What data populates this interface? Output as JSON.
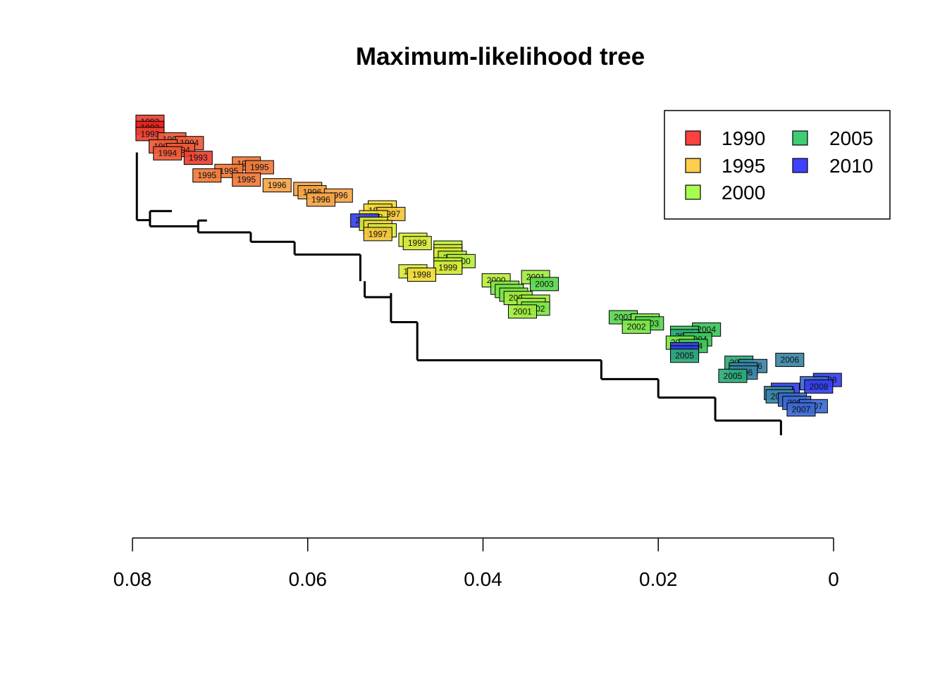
{
  "chart_data": {
    "type": "phylogenetic-tree",
    "title": "Maximum-likelihood tree",
    "xlabel": "",
    "ylabel": "",
    "x_axis": {
      "reversed": true,
      "xlim": [
        0.08,
        0
      ],
      "ticks": [
        0.08,
        0.06,
        0.04,
        0.02,
        0
      ],
      "tick_labels": [
        "0.08",
        "0.06",
        "0.04",
        "0.02",
        "0"
      ]
    },
    "legend": {
      "placement": "top-right",
      "ncol": 2,
      "entries": [
        {
          "label": "1990",
          "color": "#ff4040"
        },
        {
          "label": "1995",
          "color": "#ffcc4d"
        },
        {
          "label": "2000",
          "color": "#a6ff4d"
        },
        {
          "label": "2005",
          "color": "#40cc73"
        },
        {
          "label": "2010",
          "color": "#4040ff"
        }
      ]
    },
    "year_colors": {
      "1992": "#e61f1f",
      "1993": "#ea3f32",
      "1994": "#ee5a38",
      "1995": "#f07a3a",
      "1996": "#f5a447",
      "1997": "#f4c63d",
      "1998": "#f3dc3a",
      "1999": "#d8ea3a",
      "2000": "#b8ee3e",
      "2001": "#a1ec40",
      "2002": "#7ee64a",
      "2003": "#5ad64e",
      "2004": "#3cc45a",
      "2005": "#2eaa78",
      "2006": "#3a86a6",
      "2007": "#3c6ad1",
      "2008": "#3540ee"
    },
    "tips": [
      {
        "label": "1993",
        "year": "1993",
        "x": 0.078,
        "y": 0.005
      },
      {
        "label": "1992",
        "year": "1992",
        "x": 0.078,
        "y": 0.02
      },
      {
        "label": "1993",
        "year": "1993",
        "x": 0.078,
        "y": 0.035
      },
      {
        "label": "1994",
        "year": "1994",
        "x": 0.0755,
        "y": 0.048
      },
      {
        "label": "1994",
        "year": "1994",
        "x": 0.0735,
        "y": 0.057
      },
      {
        "label": "1994",
        "year": "1994",
        "x": 0.0765,
        "y": 0.065
      },
      {
        "label": "1994",
        "year": "1994",
        "x": 0.0745,
        "y": 0.074
      },
      {
        "label": "1994",
        "year": "1994",
        "x": 0.076,
        "y": 0.082
      },
      {
        "label": "1993",
        "year": "1993",
        "x": 0.0725,
        "y": 0.093
      },
      {
        "label": "1995",
        "year": "1995",
        "x": 0.067,
        "y": 0.107
      },
      {
        "label": "1995",
        "year": "1995",
        "x": 0.0655,
        "y": 0.116
      },
      {
        "label": "1995",
        "year": "1995",
        "x": 0.069,
        "y": 0.125
      },
      {
        "label": "1995",
        "year": "1995",
        "x": 0.0715,
        "y": 0.136
      },
      {
        "label": "1995",
        "year": "1995",
        "x": 0.067,
        "y": 0.146
      },
      {
        "label": "1996",
        "year": "1996",
        "x": 0.0635,
        "y": 0.16
      },
      {
        "label": "1996",
        "year": "1996",
        "x": 0.06,
        "y": 0.169
      },
      {
        "label": "1996",
        "year": "1996",
        "x": 0.0595,
        "y": 0.177
      },
      {
        "label": "1996",
        "year": "1996",
        "x": 0.0565,
        "y": 0.185
      },
      {
        "label": "1996",
        "year": "1996",
        "x": 0.0585,
        "y": 0.195
      },
      {
        "label": "1998",
        "year": "1998",
        "x": 0.0515,
        "y": 0.214
      },
      {
        "label": "1998",
        "year": "1998",
        "x": 0.052,
        "y": 0.222
      },
      {
        "label": "1997",
        "year": "1997",
        "x": 0.0505,
        "y": 0.23
      },
      {
        "label": "1998",
        "year": "1998",
        "x": 0.0525,
        "y": 0.238
      },
      {
        "label": "2008",
        "year": "2008",
        "x": 0.0535,
        "y": 0.246
      },
      {
        "label": "1999",
        "year": "1999",
        "x": 0.0525,
        "y": 0.254
      },
      {
        "label": "1998",
        "year": "1998",
        "x": 0.052,
        "y": 0.262
      },
      {
        "label": "1999",
        "year": "1999",
        "x": 0.0515,
        "y": 0.27
      },
      {
        "label": "1997",
        "year": "1997",
        "x": 0.052,
        "y": 0.279
      },
      {
        "label": "1999",
        "year": "1999",
        "x": 0.048,
        "y": 0.293
      },
      {
        "label": "1999",
        "year": "1999",
        "x": 0.0475,
        "y": 0.301
      },
      {
        "label": "2000",
        "year": "2000",
        "x": 0.044,
        "y": 0.312
      },
      {
        "label": "1999",
        "year": "1999",
        "x": 0.044,
        "y": 0.321
      },
      {
        "label": "1999",
        "year": "1999",
        "x": 0.044,
        "y": 0.329
      },
      {
        "label": "2000",
        "year": "2000",
        "x": 0.0435,
        "y": 0.337
      },
      {
        "label": "2000",
        "year": "2000",
        "x": 0.0425,
        "y": 0.345
      },
      {
        "label": "2000",
        "year": "2000",
        "x": 0.044,
        "y": 0.353
      },
      {
        "label": "1999",
        "year": "1999",
        "x": 0.044,
        "y": 0.361
      },
      {
        "label": "1999",
        "year": "1999",
        "x": 0.048,
        "y": 0.37
      },
      {
        "label": "1998",
        "year": "1998",
        "x": 0.047,
        "y": 0.378
      },
      {
        "label": "2000",
        "year": "2000",
        "x": 0.0385,
        "y": 0.392
      },
      {
        "label": "2001",
        "year": "2001",
        "x": 0.034,
        "y": 0.384
      },
      {
        "label": "2003",
        "year": "2003",
        "x": 0.033,
        "y": 0.401
      },
      {
        "label": "2002",
        "year": "2002",
        "x": 0.0375,
        "y": 0.41
      },
      {
        "label": "2002",
        "year": "2002",
        "x": 0.037,
        "y": 0.418
      },
      {
        "label": "2002",
        "year": "2002",
        "x": 0.0365,
        "y": 0.427
      },
      {
        "label": "2001",
        "year": "2001",
        "x": 0.036,
        "y": 0.435
      },
      {
        "label": "2001",
        "year": "2001",
        "x": 0.034,
        "y": 0.444
      },
      {
        "label": "2001",
        "year": "2001",
        "x": 0.0345,
        "y": 0.452
      },
      {
        "label": "2002",
        "year": "2002",
        "x": 0.034,
        "y": 0.461
      },
      {
        "label": "2001",
        "year": "2001",
        "x": 0.0355,
        "y": 0.468
      },
      {
        "label": "2003",
        "year": "2003",
        "x": 0.024,
        "y": 0.482
      },
      {
        "label": "2002",
        "year": "2002",
        "x": 0.0215,
        "y": 0.49
      },
      {
        "label": "2003",
        "year": "2003",
        "x": 0.021,
        "y": 0.497
      },
      {
        "label": "2002",
        "year": "2002",
        "x": 0.0225,
        "y": 0.505
      },
      {
        "label": "2004",
        "year": "2004",
        "x": 0.0145,
        "y": 0.512
      },
      {
        "label": "2004",
        "year": "2004",
        "x": 0.017,
        "y": 0.52
      },
      {
        "label": "2005",
        "year": "2005",
        "x": 0.017,
        "y": 0.528
      },
      {
        "label": "2004",
        "year": "2004",
        "x": 0.0155,
        "y": 0.536
      },
      {
        "label": "2002",
        "year": "2002",
        "x": 0.0175,
        "y": 0.544
      },
      {
        "label": "2004",
        "year": "2004",
        "x": 0.016,
        "y": 0.552
      },
      {
        "label": "2008",
        "year": "2008",
        "x": 0.017,
        "y": 0.56
      },
      {
        "label": "2008",
        "year": "2008",
        "x": 0.017,
        "y": 0.568
      },
      {
        "label": "2005",
        "year": "2005",
        "x": 0.017,
        "y": 0.576
      },
      {
        "label": "2006",
        "year": "2006",
        "x": 0.005,
        "y": 0.586
      },
      {
        "label": "2005",
        "year": "2005",
        "x": 0.0108,
        "y": 0.593
      },
      {
        "label": "2006",
        "year": "2006",
        "x": 0.0092,
        "y": 0.601
      },
      {
        "label": "2006",
        "year": "2006",
        "x": 0.0103,
        "y": 0.609
      },
      {
        "label": "2006",
        "year": "2006",
        "x": 0.0103,
        "y": 0.617
      },
      {
        "label": "2005",
        "year": "2005",
        "x": 0.0115,
        "y": 0.625
      },
      {
        "label": "2008",
        "year": "2008",
        "x": 0.0007,
        "y": 0.635
      },
      {
        "label": "2007",
        "year": "2007",
        "x": 0.0022,
        "y": 0.643
      },
      {
        "label": "2008",
        "year": "2008",
        "x": 0.0017,
        "y": 0.651
      },
      {
        "label": "2008",
        "year": "2008",
        "x": 0.0055,
        "y": 0.659
      },
      {
        "label": "2006",
        "year": "2006",
        "x": 0.0063,
        "y": 0.667
      },
      {
        "label": "2006",
        "year": "2006",
        "x": 0.0061,
        "y": 0.675
      },
      {
        "label": "2007",
        "year": "2007",
        "x": 0.0047,
        "y": 0.683
      },
      {
        "label": "2007",
        "year": "2007",
        "x": 0.0042,
        "y": 0.691
      },
      {
        "label": "2007",
        "year": "2007",
        "x": 0.0023,
        "y": 0.699
      },
      {
        "label": "2007",
        "year": "2007",
        "x": 0.0037,
        "y": 0.707
      }
    ],
    "branches": [
      [
        [
          0.0795,
          0.08
        ],
        [
          0.0795,
          0.231
        ]
      ],
      [
        [
          0.0795,
          0.231
        ],
        [
          0.0795,
          0.245
        ]
      ],
      [
        [
          0.0795,
          0.245
        ],
        [
          0.078,
          0.245
        ]
      ],
      [
        [
          0.078,
          0.223
        ],
        [
          0.078,
          0.26
        ]
      ],
      [
        [
          0.078,
          0.223
        ],
        [
          0.0755,
          0.223
        ]
      ],
      [
        [
          0.078,
          0.26
        ],
        [
          0.0725,
          0.26
        ]
      ],
      [
        [
          0.0725,
          0.246
        ],
        [
          0.0725,
          0.275
        ]
      ],
      [
        [
          0.0725,
          0.246
        ],
        [
          0.0715,
          0.246
        ]
      ],
      [
        [
          0.0725,
          0.275
        ],
        [
          0.0665,
          0.275
        ]
      ],
      [
        [
          0.0665,
          0.275
        ],
        [
          0.0665,
          0.298
        ]
      ],
      [
        [
          0.0665,
          0.298
        ],
        [
          0.0615,
          0.298
        ]
      ],
      [
        [
          0.0615,
          0.298
        ],
        [
          0.0615,
          0.329
        ]
      ],
      [
        [
          0.0615,
          0.329
        ],
        [
          0.054,
          0.329
        ]
      ],
      [
        [
          0.054,
          0.329
        ],
        [
          0.054,
          0.394
        ]
      ],
      [
        [
          0.0535,
          0.394
        ],
        [
          0.0535,
          0.433
        ]
      ],
      [
        [
          0.0535,
          0.433
        ],
        [
          0.0505,
          0.433
        ]
      ],
      [
        [
          0.0505,
          0.423
        ],
        [
          0.0505,
          0.494
        ]
      ],
      [
        [
          0.0505,
          0.494
        ],
        [
          0.0475,
          0.494
        ]
      ],
      [
        [
          0.0475,
          0.494
        ],
        [
          0.0475,
          0.587
        ]
      ],
      [
        [
          0.0475,
          0.587
        ],
        [
          0.0265,
          0.587
        ]
      ],
      [
        [
          0.0265,
          0.587
        ],
        [
          0.0265,
          0.633
        ]
      ],
      [
        [
          0.0265,
          0.633
        ],
        [
          0.02,
          0.633
        ]
      ],
      [
        [
          0.02,
          0.633
        ],
        [
          0.02,
          0.678
        ]
      ],
      [
        [
          0.02,
          0.678
        ],
        [
          0.0135,
          0.678
        ]
      ],
      [
        [
          0.0135,
          0.678
        ],
        [
          0.0135,
          0.734
        ]
      ],
      [
        [
          0.0135,
          0.734
        ],
        [
          0.006,
          0.734
        ]
      ],
      [
        [
          0.006,
          0.734
        ],
        [
          0.006,
          0.77
        ]
      ]
    ]
  }
}
